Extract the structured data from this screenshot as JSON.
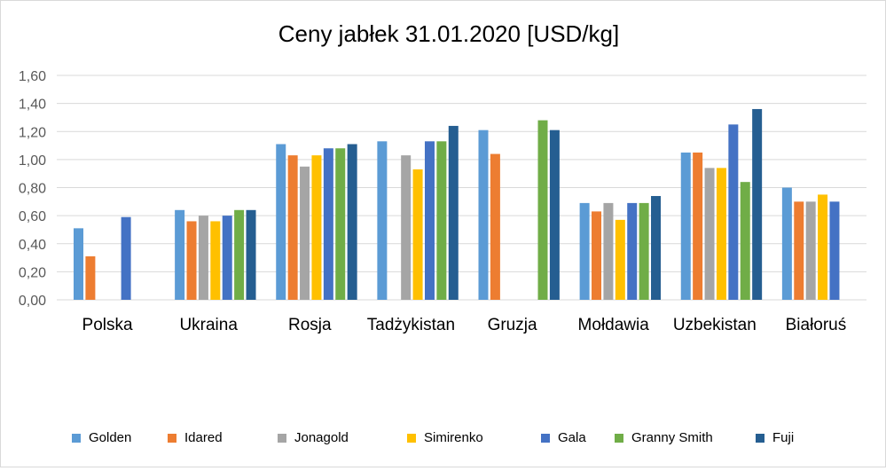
{
  "chart_data": {
    "type": "bar",
    "title": "Ceny jabłek 31.01.2020 [USD/kg]",
    "xlabel": "",
    "ylabel": "",
    "ylim": [
      0,
      1.6
    ],
    "yticks": [
      "0,00",
      "0,20",
      "0,40",
      "0,60",
      "0,80",
      "1,00",
      "1,20",
      "1,40",
      "1,60"
    ],
    "yticks_values": [
      0,
      0.2,
      0.4,
      0.6,
      0.8,
      1.0,
      1.2,
      1.4,
      1.6
    ],
    "grid": true,
    "legend_position": "bottom",
    "categories": [
      "Polska",
      "Ukraina",
      "Rosja",
      "Tadżykistan",
      "Gruzja",
      "Mołdawia",
      "Uzbekistan",
      "Białoruś"
    ],
    "series": [
      {
        "name": "Golden",
        "color": "#5b9bd5",
        "values": [
          0.51,
          0.64,
          1.11,
          1.13,
          1.21,
          0.69,
          1.05,
          0.8
        ]
      },
      {
        "name": "Idared",
        "color": "#ed7d31",
        "values": [
          0.31,
          0.56,
          1.03,
          null,
          1.04,
          0.63,
          1.05,
          0.7
        ]
      },
      {
        "name": "Jonagold",
        "color": "#a5a5a5",
        "values": [
          null,
          0.6,
          0.95,
          1.03,
          null,
          0.69,
          0.94,
          0.7
        ]
      },
      {
        "name": "Simirenko",
        "color": "#ffc000",
        "values": [
          null,
          0.56,
          1.03,
          0.93,
          null,
          0.57,
          0.94,
          0.75
        ]
      },
      {
        "name": "Gala",
        "color": "#4472c4",
        "values": [
          0.59,
          0.6,
          1.08,
          1.13,
          null,
          0.69,
          1.25,
          0.7
        ]
      },
      {
        "name": "Granny Smith",
        "color": "#70ad47",
        "values": [
          null,
          0.64,
          1.08,
          1.13,
          1.28,
          0.69,
          0.84,
          null
        ]
      },
      {
        "name": "Fuji",
        "color": "#255e91",
        "values": [
          null,
          0.64,
          1.11,
          1.24,
          1.21,
          0.74,
          1.36,
          null
        ]
      }
    ]
  }
}
